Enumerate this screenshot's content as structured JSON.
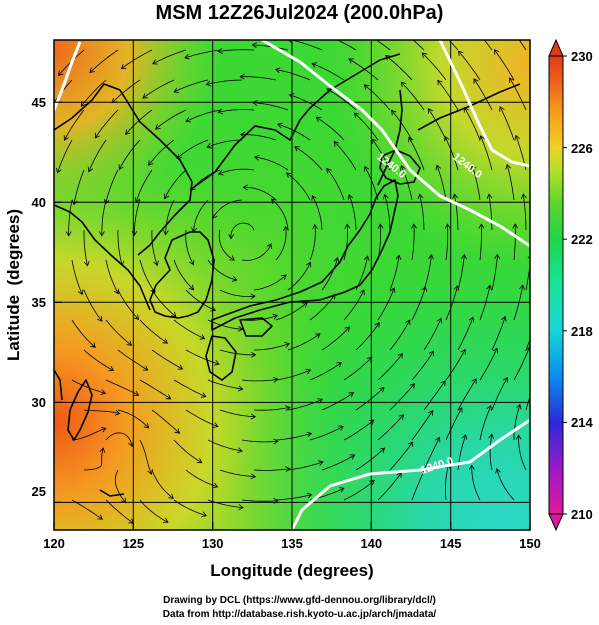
{
  "title": "MSM 12Z26Jul2024 (200.0hPa)",
  "x_axis": {
    "label": "Longitude (degrees)",
    "ticks": [
      120,
      125,
      130,
      135,
      140,
      145,
      150
    ]
  },
  "y_axis": {
    "label": "Latitude  (degrees)",
    "ticks": [
      25,
      30,
      35,
      40,
      45
    ]
  },
  "map_extent": {
    "lon": [
      120,
      150
    ],
    "lat": [
      22.4,
      47.6
    ]
  },
  "colorbar": {
    "ticks": [
      210,
      214,
      218,
      222,
      226,
      230
    ],
    "range": [
      210,
      230
    ],
    "colors": [
      "#e0199c",
      "#9b1aca",
      "#2a2ad8",
      "#0a8cf0",
      "#14d7d7",
      "#18e39a",
      "#20d64a",
      "#5cd62a",
      "#b4e02a",
      "#f0d224",
      "#f59a1c",
      "#ee5c1a",
      "#e03c18"
    ]
  },
  "contours": [
    {
      "label": "1240.0"
    },
    {
      "label": "1240.0"
    },
    {
      "label": "1240.0"
    }
  ],
  "credits": {
    "line1": "Drawing by DCL (https://www.gfd-dennou.org/library/dcl/)",
    "line2": "Data from http://database.rish.kyoto-u.ac.jp/arch/jmadata/"
  }
}
